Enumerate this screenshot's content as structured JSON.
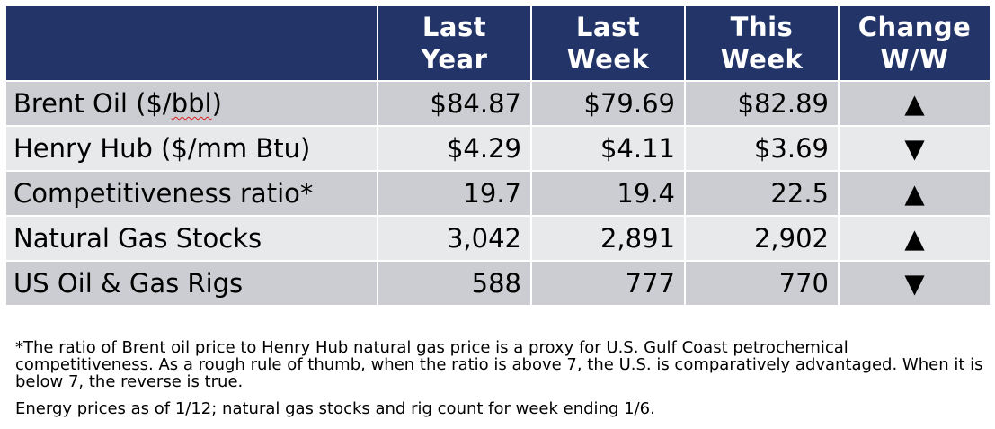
{
  "table": {
    "headers": [
      {
        "text": ""
      },
      {
        "text": "Last\nYear"
      },
      {
        "text": "Last\nWeek"
      },
      {
        "text": "This\nWeek"
      },
      {
        "text": "Change\nW/W"
      }
    ],
    "rows": [
      {
        "label_pre": "Brent Oil ($/",
        "label_mark": "bbl",
        "label_post": ")",
        "last_year": "$84.87",
        "last_week": "$79.69",
        "this_week": "$82.89",
        "change": "▲"
      },
      {
        "label": "Henry Hub ($/mm Btu)",
        "last_year": "$4.29",
        "last_week": "$4.11",
        "this_week": "$3.69",
        "change": "▼"
      },
      {
        "label": "Competitiveness ratio*",
        "last_year": "19.7",
        "last_week": "19.4",
        "this_week": "22.5",
        "change": "▲"
      },
      {
        "label": "Natural Gas Stocks",
        "last_year": "3,042",
        "last_week": "2,891",
        "this_week": "2,902",
        "change": "▲"
      },
      {
        "label": "US Oil & Gas Rigs",
        "last_year": "588",
        "last_week": "777",
        "this_week": "770",
        "change": "▼"
      }
    ]
  },
  "colors": {
    "header_bg": "#233468",
    "row_dark": "#cbcdd2",
    "row_light": "#e8e9eb"
  },
  "notes": {
    "footnote": "*The ratio of Brent oil price to Henry Hub natural gas price is a proxy for U.S. Gulf Coast petrochemical competitiveness. As a rough rule of thumb, when the ratio is above 7, the U.S. is comparatively advantaged. When it is below 7, the reverse is true.",
    "asof": "Energy prices as of 1/12; natural gas stocks and rig count for week ending 1/6."
  }
}
